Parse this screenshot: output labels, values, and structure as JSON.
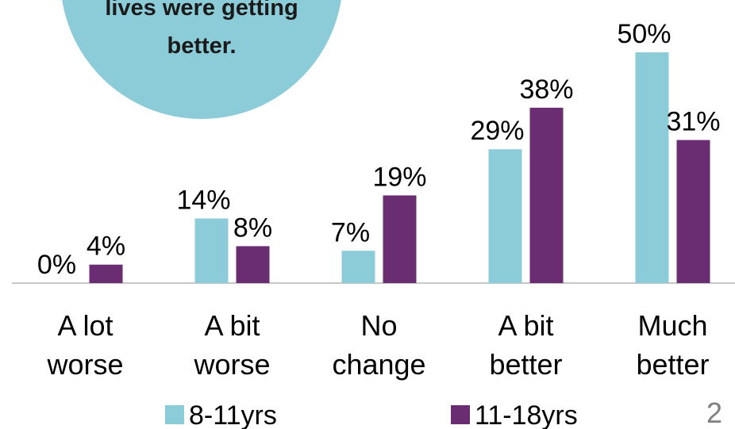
{
  "chart_data": {
    "type": "bar",
    "annotation": "lives were getting better.",
    "categories": [
      "A lot worse",
      "A bit worse",
      "No change",
      "A bit better",
      "Much better"
    ],
    "series": [
      {
        "name": "8-11yrs",
        "color": "#8ccbd8",
        "values": [
          0,
          14,
          7,
          29,
          50
        ],
        "value_labels": [
          "0%",
          "14%",
          "7%",
          "29%",
          "50%"
        ]
      },
      {
        "name": "11-18yrs",
        "color": "#6b2d72",
        "values": [
          4,
          8,
          19,
          38,
          31
        ],
        "value_labels": [
          "4%",
          "8%",
          "19%",
          "38%",
          "31%"
        ]
      }
    ],
    "ylim": [
      0,
      50
    ],
    "page_number": "2"
  }
}
